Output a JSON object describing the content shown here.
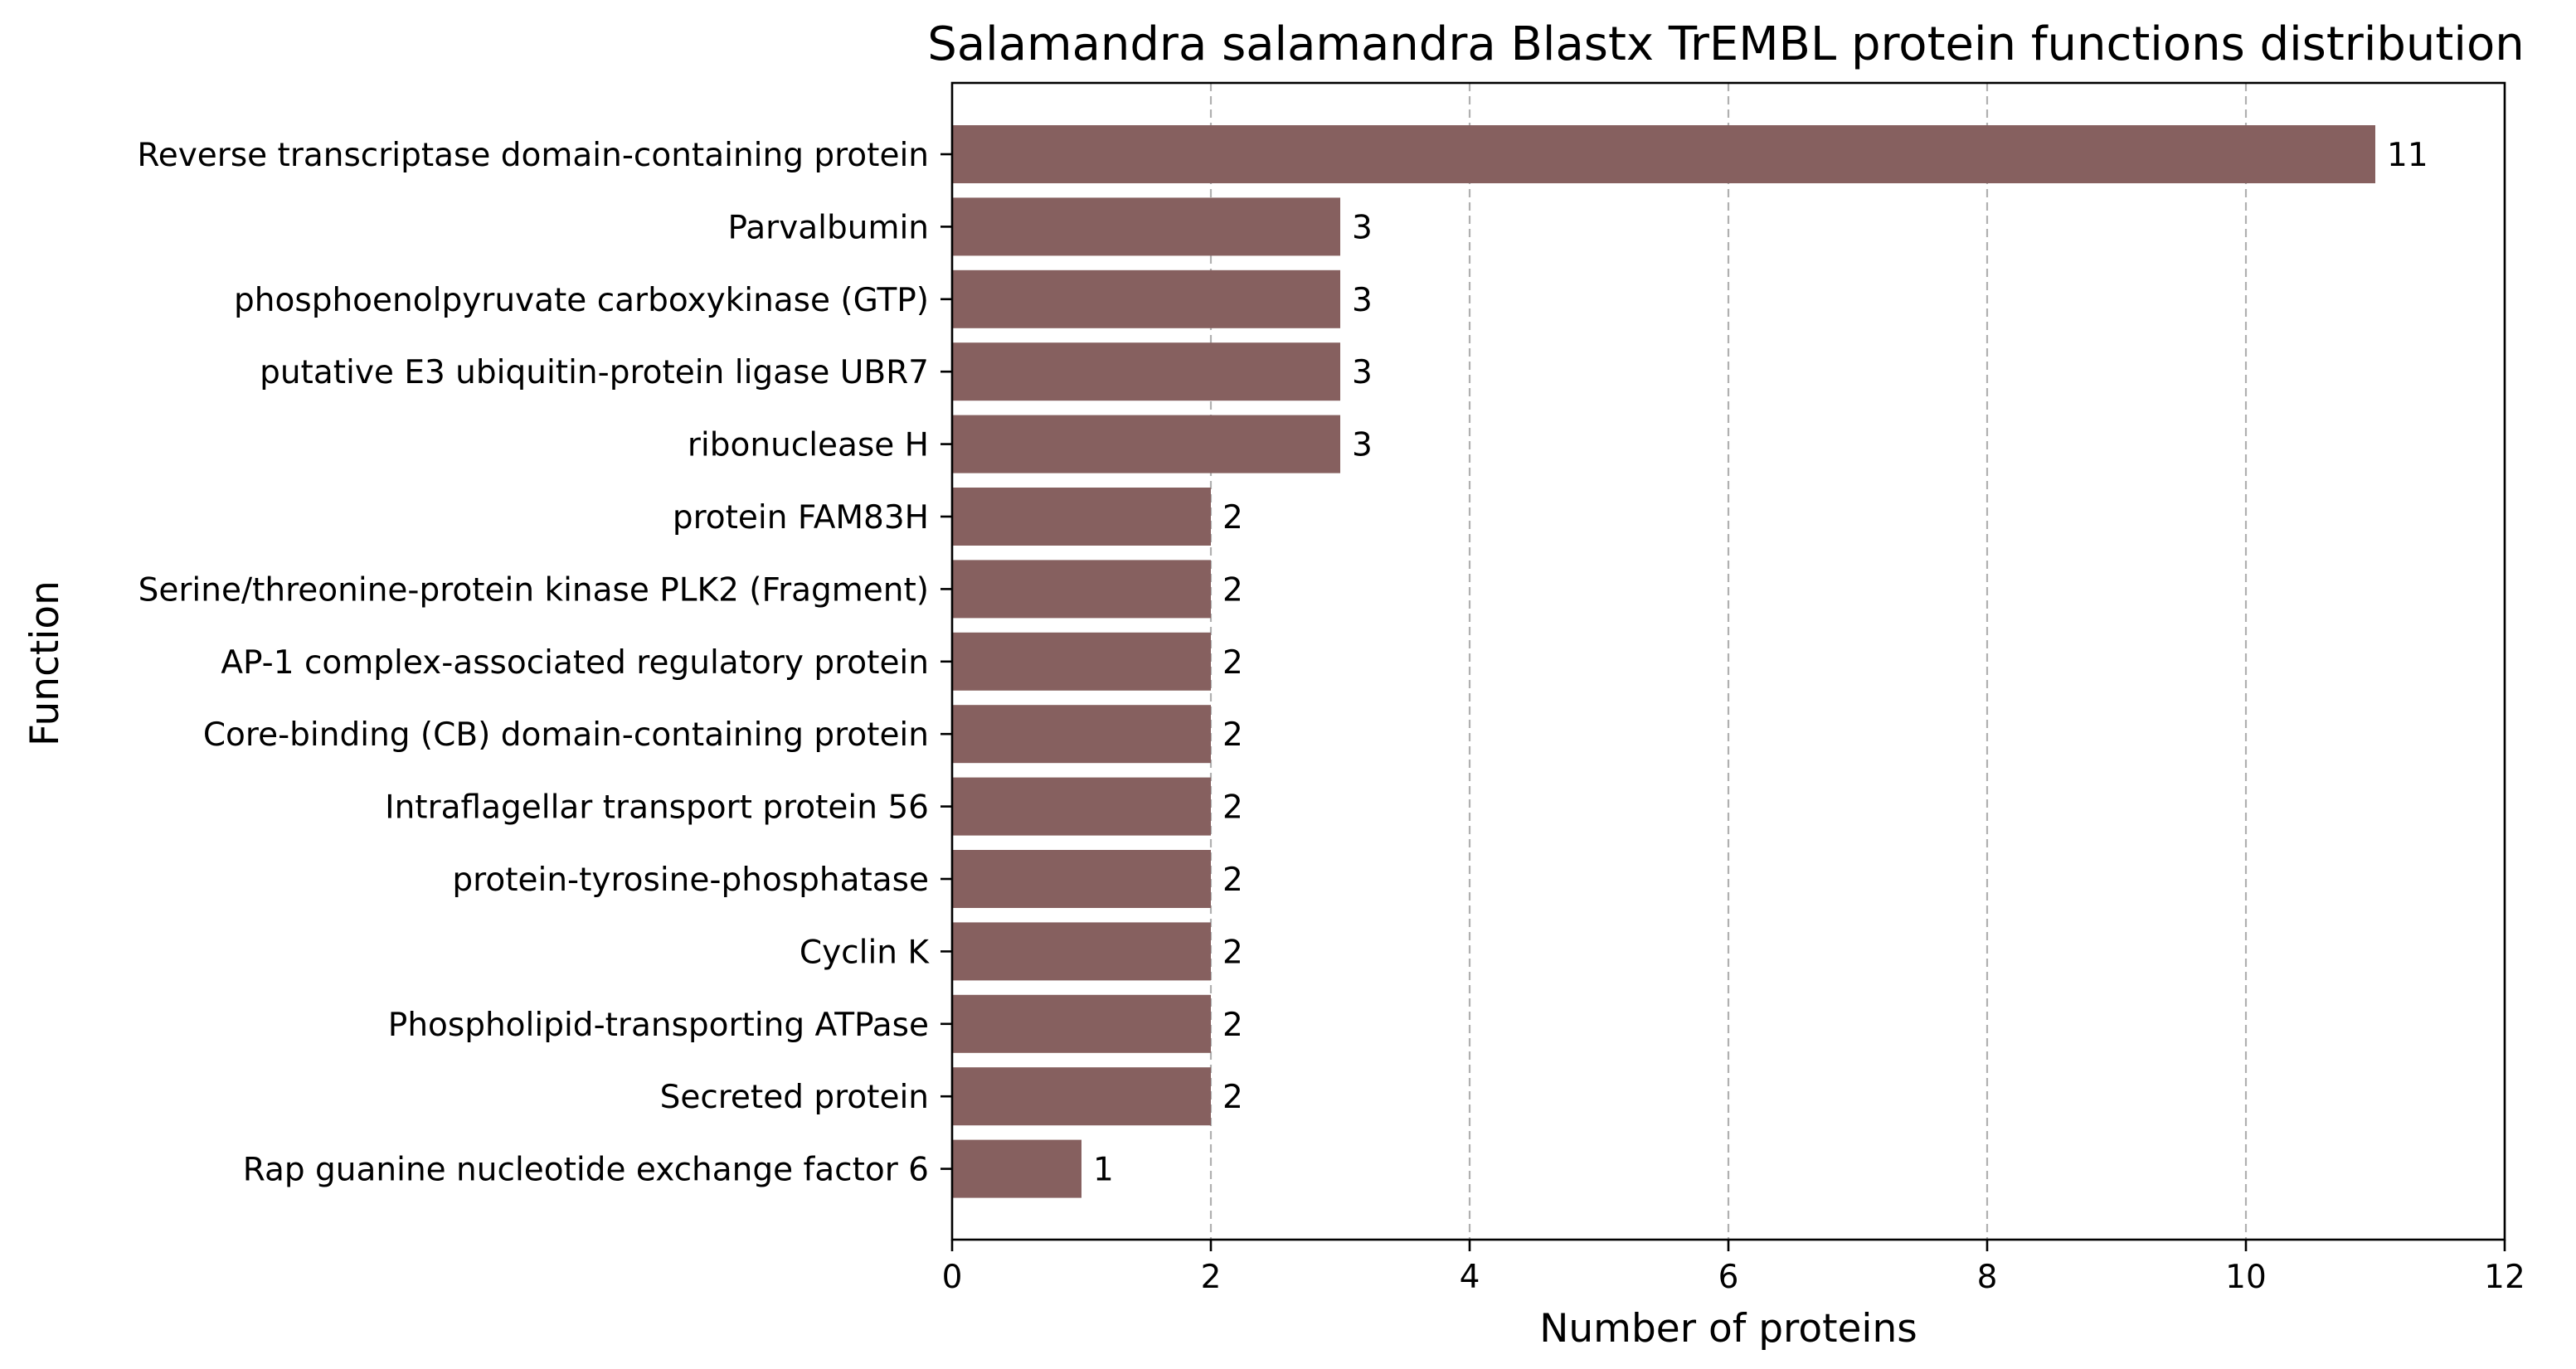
{
  "chart_data": {
    "type": "bar",
    "orientation": "horizontal",
    "title": "Salamandra salamandra Blastx TrEMBL protein functions distribution",
    "xlabel": "Number of proteins",
    "ylabel": "Function",
    "xlim": [
      0,
      12
    ],
    "xticks": [
      "0",
      "2",
      "4",
      "6",
      "8",
      "10",
      "12"
    ],
    "grid": "x-dashed",
    "bar_color": "#86605f",
    "grid_color": "#b0b0b0",
    "categories": [
      "Reverse transcriptase domain-containing protein",
      "Parvalbumin",
      "phosphoenolpyruvate carboxykinase (GTP)",
      "putative E3 ubiquitin-protein ligase UBR7",
      "ribonuclease H",
      "protein FAM83H",
      "Serine/threonine-protein kinase PLK2 (Fragment)",
      "AP-1 complex-associated regulatory protein",
      "Core-binding (CB) domain-containing protein",
      "Intraflagellar transport protein 56",
      "protein-tyrosine-phosphatase",
      "Cyclin K",
      "Phospholipid-transporting ATPase",
      "Secreted protein",
      "Rap guanine nucleotide exchange factor 6"
    ],
    "values": [
      11,
      3,
      3,
      3,
      3,
      2,
      2,
      2,
      2,
      2,
      2,
      2,
      2,
      2,
      1
    ],
    "data_labels": [
      "11",
      "3",
      "3",
      "3",
      "3",
      "2",
      "2",
      "2",
      "2",
      "2",
      "2",
      "2",
      "2",
      "2",
      "1"
    ]
  }
}
